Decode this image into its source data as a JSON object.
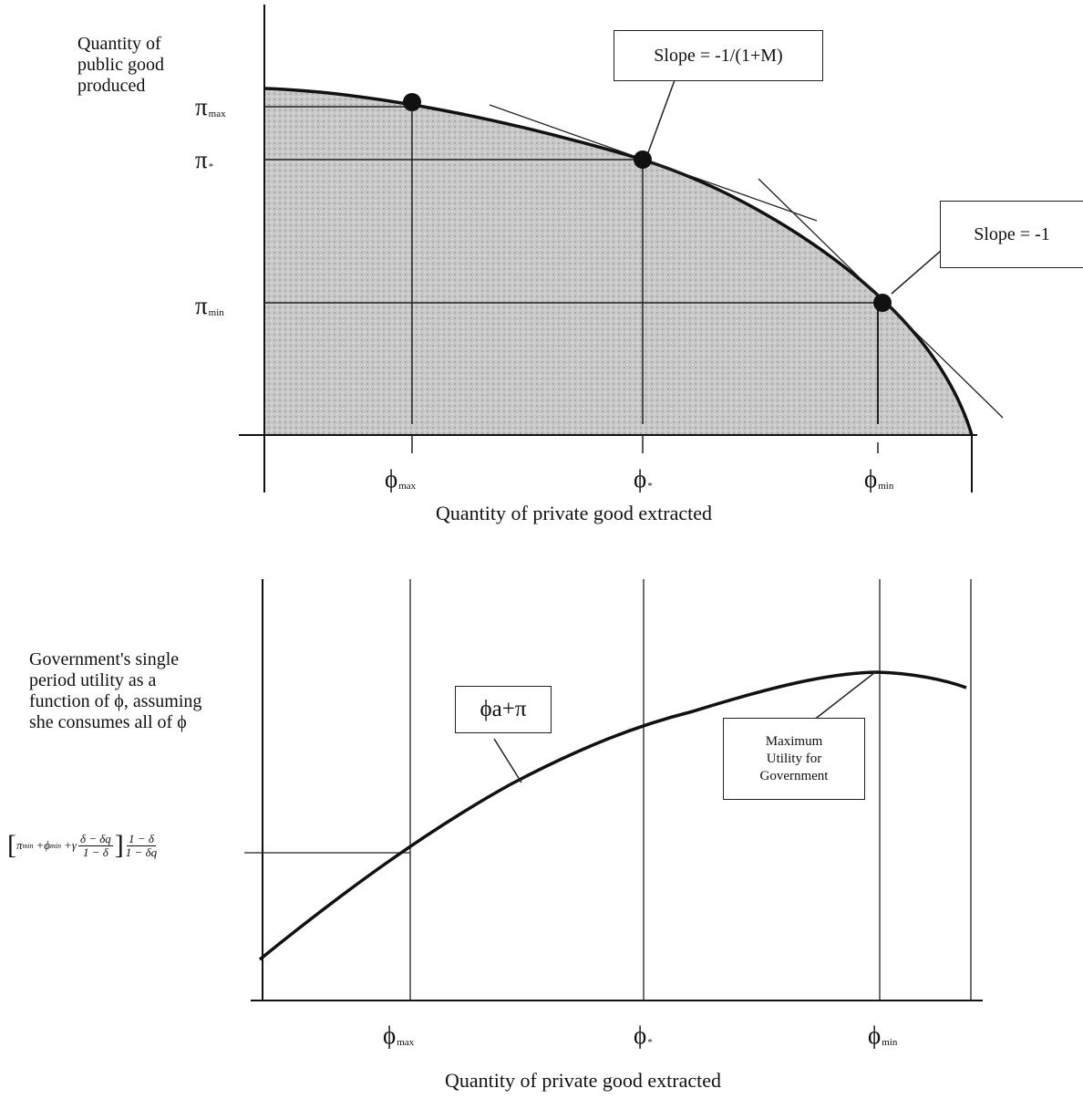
{
  "top_panel": {
    "y_axis_label": [
      "Quantity of",
      "public good",
      "produced"
    ],
    "x_axis_label": "Quantity of private good extracted",
    "y_ticks": [
      {
        "symbol": "π",
        "sub": "max"
      },
      {
        "symbol": "π",
        "sub": "*"
      },
      {
        "symbol": "π",
        "sub": "min"
      }
    ],
    "x_ticks": [
      {
        "symbol": "ϕ",
        "sub": "max"
      },
      {
        "symbol": "ϕ",
        "sub": "*"
      },
      {
        "symbol": "ϕ",
        "sub": "min"
      }
    ],
    "callout_slope_m": "Slope = -1/(1+M)",
    "callout_slope_one": "Slope = -1"
  },
  "bottom_panel": {
    "y_axis_label": [
      "Government's single",
      "period utility as a",
      "function of ϕ, assuming",
      "she consumes all of ϕ"
    ],
    "x_axis_label": "Quantity of private good extracted",
    "curve_label": "ϕa+π",
    "max_callout": [
      "Maximum",
      "Utility for",
      "Government"
    ],
    "formula": {
      "head": "π",
      "head_sub": "min",
      "mid": "+ϕ",
      "mid_sub": "min",
      "plus": "+",
      "gamma": "γ",
      "frac1_num": "δ − δq",
      "frac1_den": "1 − δ",
      "frac2_num": "1 − δ",
      "frac2_den": "1 − δq"
    },
    "x_ticks": [
      {
        "symbol": "ϕ",
        "sub": "max"
      },
      {
        "symbol": "ϕ",
        "sub": "*"
      },
      {
        "symbol": "ϕ",
        "sub": "min"
      }
    ]
  },
  "colors": {
    "shade": "#c4c4c4",
    "ink": "#111111"
  }
}
